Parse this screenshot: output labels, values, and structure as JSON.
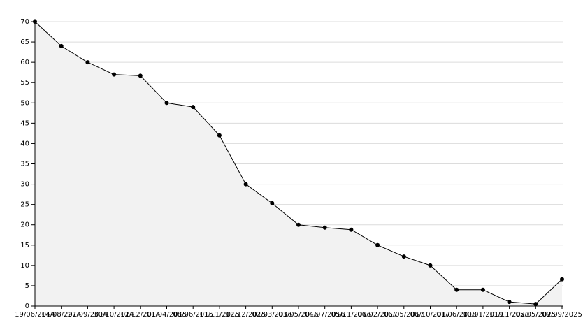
{
  "chart_data": {
    "type": "area",
    "categories": [
      "19/06/2014",
      "14/08/2014",
      "27/09/2014",
      "30/10/2014",
      "12/12/2014",
      "01/04/2015",
      "08/06/2015",
      "11/11/2015",
      "12/12/2015",
      "02/03/2016",
      "03/05/2016",
      "04/07/2016",
      "05/11/2016",
      "06/02/2017",
      "06/05/2017",
      "06/10/2017",
      "01/06/2018",
      "10/01/2019",
      "11/11/2020",
      "05/05/2025",
      "09/09/2025"
    ],
    "values": [
      70,
      64,
      60,
      57,
      56.7,
      50,
      49,
      42,
      30,
      25.3,
      20,
      19.3,
      18.8,
      15,
      12.2,
      10,
      4,
      4,
      1,
      0.5,
      6.6
    ],
    "color": "#000000",
    "fill": "#f2f2f2",
    "ylim": [
      0,
      70
    ],
    "yticks": [
      0,
      5,
      10,
      15,
      20,
      25,
      30,
      35,
      40,
      45,
      50,
      55,
      60,
      65,
      70
    ],
    "grid": true
  }
}
